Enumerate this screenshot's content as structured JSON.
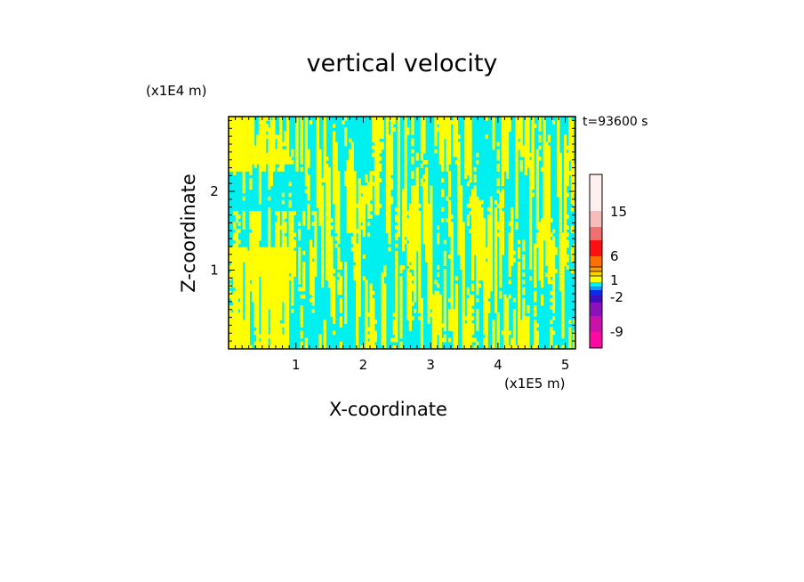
{
  "chart_data": {
    "type": "heatmap",
    "title": "vertical velocity",
    "xlabel": "X-coordinate",
    "ylabel": "Z-coordinate",
    "x_unit": "(x1E5 m)",
    "z_unit": "(x1E4 m)",
    "time_label": "t=93600 s",
    "xlim": [
      0,
      5.15
    ],
    "ylim": [
      0,
      2.95
    ],
    "x_ticks": [
      "1",
      "2",
      "3",
      "4",
      "5"
    ],
    "y_ticks": [
      "1",
      "2"
    ],
    "colorbar": {
      "tick_labels": [
        "15",
        "6",
        "1",
        "-2",
        "-9"
      ],
      "colors": [
        "#ff0aa0",
        "#cc11aa",
        "#8a11bb",
        "#3a0fbf",
        "#0a2aee",
        "#0aa0f0",
        "#00f0f0",
        "#ffff00",
        "#ffd200",
        "#ffa000",
        "#ff7000",
        "#ff1010",
        "#f07070",
        "#f7bcbc",
        "#fff0f0"
      ]
    },
    "dominant_colors": {
      "positive": "#ffff00",
      "negative": "#00f0f0"
    }
  }
}
